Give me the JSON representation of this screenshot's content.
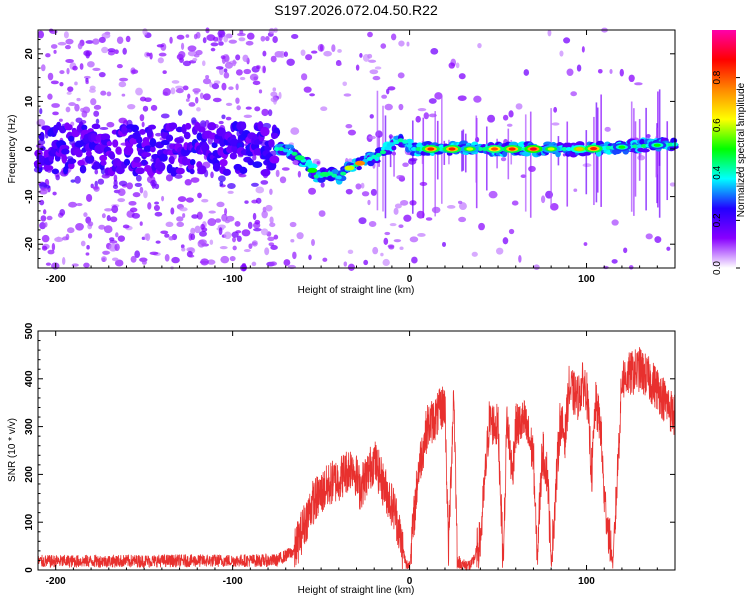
{
  "figure": {
    "title": "S197.2026.072.04.50.R22"
  },
  "chart_data": [
    {
      "type": "heatmap",
      "title": "",
      "xlabel": "Height of straight line (km)",
      "ylabel": "Frequency (Hz)",
      "xlim": [
        -210,
        150
      ],
      "ylim": [
        -25,
        25
      ],
      "xticks": [
        -200,
        -100,
        0,
        100
      ],
      "xtick_labels": [
        "-200",
        "-100",
        "0",
        "100"
      ],
      "yticks": [
        -20,
        -10,
        0,
        10,
        20
      ],
      "ytick_labels": [
        "-20",
        "-10",
        "0",
        "10",
        "20"
      ],
      "colorbar": {
        "label": "Normalized spectral amplitude",
        "range": [
          0,
          1
        ],
        "ticks": [
          0.0,
          0.2,
          0.4,
          0.6,
          0.8
        ],
        "tick_labels": [
          "0.0",
          "0.2",
          "0.4",
          "0.6",
          "0.8"
        ],
        "colors": [
          "#ffffff",
          "#8800ff",
          "#2200ff",
          "#00ffff",
          "#00ff00",
          "#ffff00",
          "#ff8800",
          "#ff0000",
          "#ff00aa"
        ]
      },
      "ridge": {
        "x": [
          -210,
          -80,
          -72,
          -65,
          -58,
          -52,
          -46,
          -40,
          -34,
          -28,
          -22,
          -16,
          -10,
          -4,
          2,
          10,
          30,
          60,
          100,
          150
        ],
        "y": [
          0,
          0,
          0,
          -1,
          -3,
          -6,
          -5,
          -6,
          -4,
          -3,
          -2,
          -1,
          1,
          2,
          0,
          0,
          0,
          0,
          0,
          1
        ]
      },
      "peaks": [
        {
          "x": 12,
          "amplitude": 0.85
        },
        {
          "x": 24,
          "amplitude": 0.85
        },
        {
          "x": 34,
          "amplitude": 0.6
        },
        {
          "x": 48,
          "amplitude": 0.8
        },
        {
          "x": 58,
          "amplitude": 0.85
        },
        {
          "x": 70,
          "amplitude": 0.9
        },
        {
          "x": 80,
          "amplitude": 0.6
        },
        {
          "x": 96,
          "amplitude": 0.7
        },
        {
          "x": 104,
          "amplitude": 0.85
        },
        {
          "x": 120,
          "amplitude": 0.5
        },
        {
          "x": 140,
          "amplitude": 0.5
        }
      ]
    },
    {
      "type": "line",
      "title": "",
      "xlabel": "Height of straight line (km)",
      "ylabel": "SNR (10 * v/v)",
      "xlim": [
        -210,
        150
      ],
      "ylim": [
        0,
        500
      ],
      "xticks": [
        -200,
        -100,
        0,
        100
      ],
      "xtick_labels": [
        "-200",
        "-100",
        "0",
        "100"
      ],
      "yticks": [
        0,
        100,
        200,
        300,
        400,
        500
      ],
      "ytick_labels": [
        "0",
        "100",
        "200",
        "300",
        "400",
        "500"
      ],
      "series": [
        {
          "name": "SNR",
          "color": "#e8302e",
          "x": [
            -210,
            -75,
            -65,
            -55,
            -45,
            -40,
            -32,
            -28,
            -20,
            -15,
            -8,
            -2,
            0,
            5,
            10,
            15,
            20,
            22,
            25,
            27,
            30,
            35,
            40,
            45,
            50,
            53,
            55,
            58,
            60,
            65,
            70,
            72,
            75,
            78,
            80,
            85,
            88,
            90,
            95,
            98,
            100,
            103,
            105,
            108,
            110,
            115,
            120,
            130,
            140,
            150
          ],
          "y": [
            18,
            20,
            40,
            140,
            180,
            190,
            220,
            170,
            230,
            180,
            120,
            10,
            10,
            210,
            300,
            320,
            350,
            40,
            380,
            20,
            10,
            10,
            60,
            310,
            300,
            10,
            320,
            200,
            300,
            310,
            240,
            20,
            250,
            200,
            10,
            310,
            280,
            380,
            360,
            390,
            380,
            200,
            350,
            300,
            150,
            10,
            400,
            420,
            380,
            320
          ],
          "noise": 15
        }
      ]
    }
  ]
}
